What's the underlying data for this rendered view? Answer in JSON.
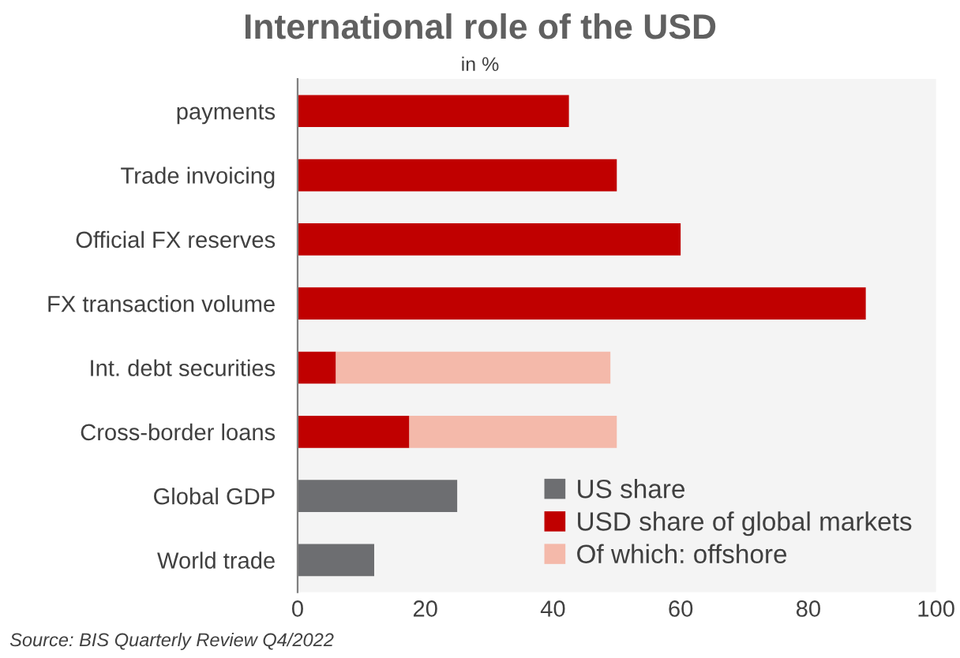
{
  "chart_data": {
    "type": "bar",
    "title": "International role of the USD",
    "subtitle": "in %",
    "orientation": "horizontal",
    "stacked": true,
    "categories": [
      "payments",
      "Trade invoicing",
      "Official FX reserves",
      "FX transaction volume",
      "Int. debt securities",
      "Cross-border loans",
      "Global GDP",
      "World trade"
    ],
    "series": [
      {
        "name": "US share",
        "color": "#6d6e71",
        "values": [
          0,
          0,
          0,
          0,
          0,
          0,
          25,
          12
        ]
      },
      {
        "name": "USD share of global markets",
        "color": "#c00000",
        "values": [
          42.5,
          50,
          60,
          89,
          6,
          17.5,
          0,
          0
        ]
      },
      {
        "name": "Of which: offshore",
        "color": "#f4b9aa",
        "values": [
          0,
          0,
          0,
          0,
          43,
          32.5,
          0,
          0
        ]
      }
    ],
    "xlim": [
      0,
      100
    ],
    "xticks": [
      0,
      20,
      40,
      60,
      80,
      100
    ],
    "grid": false,
    "legend": "bottom right",
    "annotations": [
      "Source: BIS Quarterly Review Q4/2022"
    ]
  }
}
